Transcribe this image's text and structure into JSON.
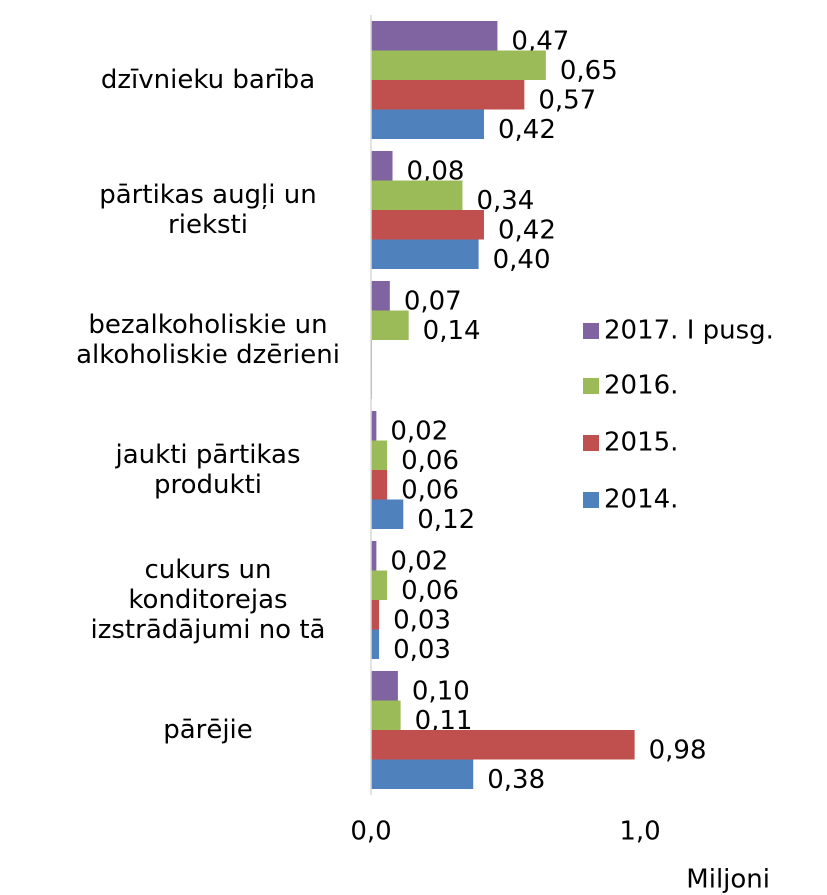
{
  "chart_data": {
    "type": "bar",
    "orientation": "horizontal",
    "categories": [
      "dzīvnieku barība",
      "pārtikas augļi un rieksti",
      "bezalkoholiskie un alkoholiskie dzērieni",
      "jaukti pārtikas produkti",
      "cukurs un konditorejas izstrādājumi no tā",
      "pārējie"
    ],
    "series": [
      {
        "name": "2017. I pusg.",
        "color": "#8064a2",
        "values": [
          0.47,
          0.08,
          0.07,
          0.02,
          0.02,
          0.1
        ],
        "value_labels": [
          "0,47",
          "0,08",
          "0,07",
          "0,02",
          "0,02",
          "0,10"
        ]
      },
      {
        "name": "2016.",
        "color": "#9bbb59",
        "values": [
          0.65,
          0.34,
          0.14,
          0.06,
          0.06,
          0.11
        ],
        "value_labels": [
          "0,65",
          "0,34",
          "0,14",
          "0,06",
          "0,06",
          "0,11"
        ]
      },
      {
        "name": "2015.",
        "color": "#c0504d",
        "values": [
          0.57,
          0.42,
          0,
          0.06,
          0.03,
          0.98
        ],
        "value_labels": [
          "0,57",
          "0,42",
          null,
          "0,06",
          "0,03",
          "0,98"
        ]
      },
      {
        "name": "2014.",
        "color": "#4f81bd",
        "values": [
          0.42,
          0.4,
          0,
          0.12,
          0.03,
          0.38
        ],
        "value_labels": [
          "0,42",
          "0,40",
          null,
          "0,12",
          "0,03",
          "0,38"
        ]
      }
    ],
    "xlim": [
      0,
      1
    ],
    "xticks": [
      {
        "value": 0,
        "label": "0,0"
      },
      {
        "value": 1,
        "label": "1,0"
      }
    ],
    "xlabel": "Miljoni",
    "legend": "right"
  }
}
